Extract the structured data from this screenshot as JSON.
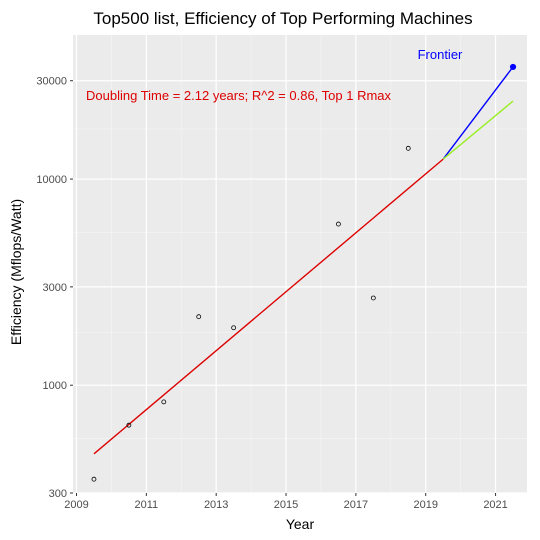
{
  "chart_data": {
    "type": "scatter",
    "title": "Top500 list, Efficiency of Top Performing Machines",
    "xlabel": "Year",
    "ylabel": "Efficiency  (Mflops/Watt)",
    "y_scale": "log",
    "xlim": [
      2008.9,
      2021.9
    ],
    "ylim": [
      300,
      50000
    ],
    "x_ticks": [
      2009,
      2011,
      2013,
      2015,
      2017,
      2019,
      2021
    ],
    "x_tick_labels": [
      "2009",
      "2011",
      "2013",
      "2015",
      "2017",
      "2019",
      "2021"
    ],
    "y_ticks": [
      300,
      1000,
      3000,
      10000,
      30000
    ],
    "y_tick_labels": [
      "300",
      "1000",
      "3000",
      "10000",
      "30000"
    ],
    "x_minor_ticks": [
      2010,
      2012,
      2014,
      2016,
      2018,
      2020
    ],
    "y_minor_ticks": [
      550,
      1800,
      5500,
      17500
    ],
    "grid": true,
    "background": "#ebebeb",
    "points": [
      {
        "x": 2009.5,
        "y": 350
      },
      {
        "x": 2010.5,
        "y": 640
      },
      {
        "x": 2011.5,
        "y": 830
      },
      {
        "x": 2012.5,
        "y": 2150
      },
      {
        "x": 2013.5,
        "y": 1900
      },
      {
        "x": 2016.5,
        "y": 6050
      },
      {
        "x": 2017.5,
        "y": 2650
      },
      {
        "x": 2018.5,
        "y": 14100
      }
    ],
    "highlight_point": {
      "x": 2021.5,
      "y": 35000,
      "label": "Frontier",
      "color": "#0000ff"
    },
    "lines": [
      {
        "x": [
          2009.5,
          2019.5
        ],
        "y": [
          465,
          12500
        ],
        "color": "#dd0000"
      },
      {
        "x": [
          2019.5,
          2021.5
        ],
        "y": [
          12500,
          35000
        ],
        "color": "#0000ff"
      },
      {
        "x": [
          2019.5,
          2021.5
        ],
        "y": [
          12500,
          23900
        ],
        "color": "#99ee22"
      }
    ],
    "annotation": {
      "text": "Doubling Time = 2.12 years; R^2 = 0.86, Top 1 Rmax",
      "color": "#dd0000"
    }
  }
}
